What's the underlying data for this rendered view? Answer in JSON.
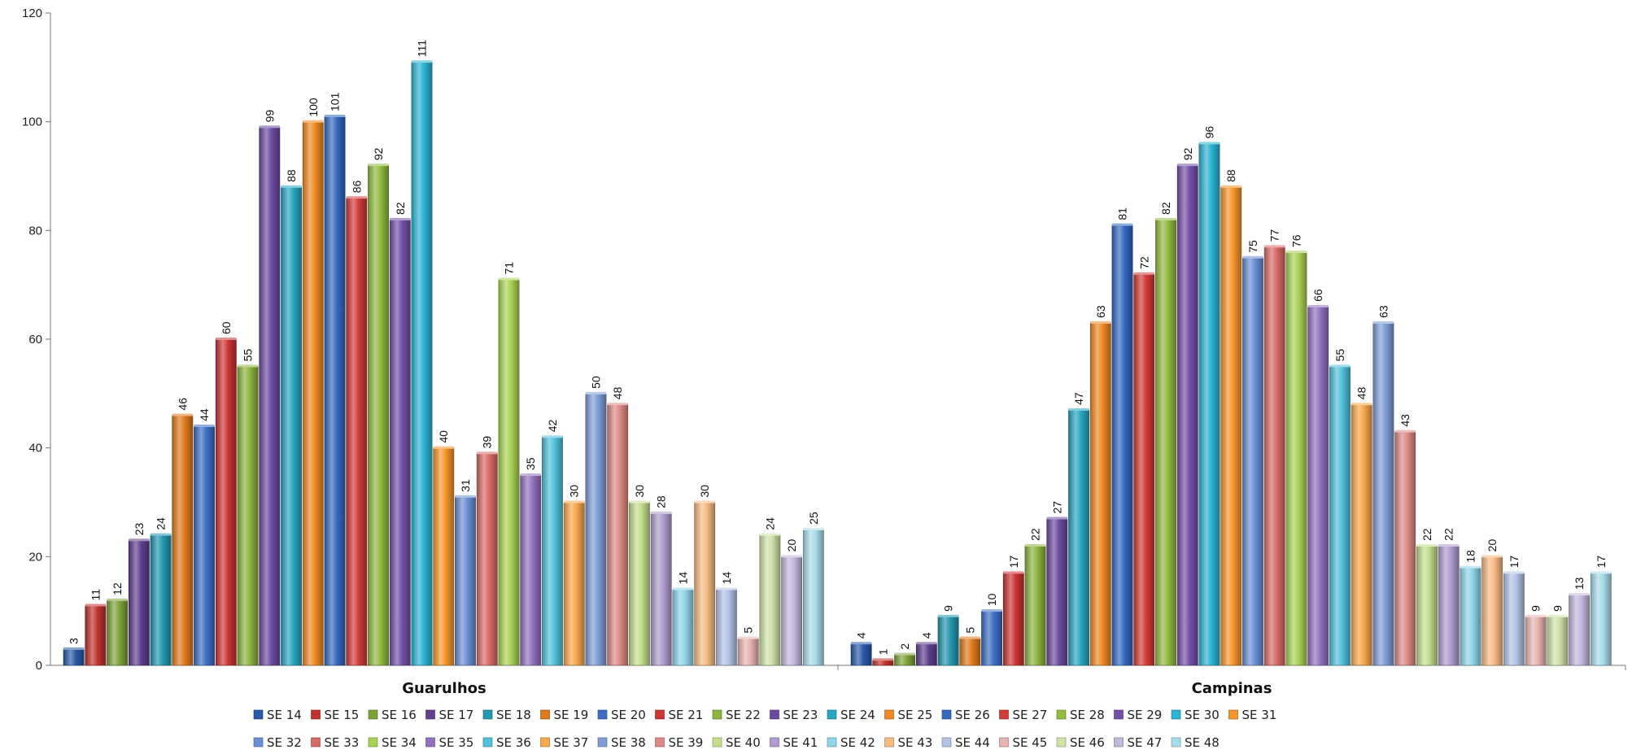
{
  "chart_data": {
    "type": "bar",
    "categories": [
      "Guarulhos",
      "Campinas"
    ],
    "ylim": [
      0,
      120
    ],
    "yticks": [
      0,
      20,
      40,
      60,
      80,
      100,
      120
    ],
    "grid": false,
    "legend_position": "bottom",
    "series": [
      {
        "name": "SE 14",
        "color": "#2a5aa8",
        "values": [
          3,
          4
        ]
      },
      {
        "name": "SE 15",
        "color": "#c0322e",
        "values": [
          11,
          1
        ]
      },
      {
        "name": "SE 16",
        "color": "#7ea23a",
        "values": [
          12,
          2
        ]
      },
      {
        "name": "SE 17",
        "color": "#5f3f8f",
        "values": [
          23,
          4
        ]
      },
      {
        "name": "SE 18",
        "color": "#2598b0",
        "values": [
          24,
          9
        ]
      },
      {
        "name": "SE 19",
        "color": "#e07a1c",
        "values": [
          46,
          5
        ]
      },
      {
        "name": "SE 20",
        "color": "#3c6fc4",
        "values": [
          44,
          10
        ]
      },
      {
        "name": "SE 21",
        "color": "#cc3533",
        "values": [
          60,
          17
        ]
      },
      {
        "name": "SE 22",
        "color": "#8cb43e",
        "values": [
          55,
          22
        ]
      },
      {
        "name": "SE 23",
        "color": "#6b4aa0",
        "values": [
          99,
          27
        ]
      },
      {
        "name": "SE 24",
        "color": "#29a7c2",
        "values": [
          88,
          47
        ]
      },
      {
        "name": "SE 25",
        "color": "#f08a22",
        "values": [
          100,
          63
        ]
      },
      {
        "name": "SE 26",
        "color": "#3469c0",
        "values": [
          101,
          81
        ]
      },
      {
        "name": "SE 27",
        "color": "#d23b38",
        "values": [
          86,
          72
        ]
      },
      {
        "name": "SE 28",
        "color": "#92bc40",
        "values": [
          92,
          82
        ]
      },
      {
        "name": "SE 29",
        "color": "#7450a8",
        "values": [
          82,
          92
        ]
      },
      {
        "name": "SE 30",
        "color": "#2cb4d2",
        "values": [
          111,
          96
        ]
      },
      {
        "name": "SE 31",
        "color": "#f5962c",
        "values": [
          40,
          88
        ]
      },
      {
        "name": "SE 32",
        "color": "#6b8fd4",
        "values": [
          31,
          75
        ]
      },
      {
        "name": "SE 33",
        "color": "#d86a66",
        "values": [
          39,
          77
        ]
      },
      {
        "name": "SE 34",
        "color": "#aad255",
        "values": [
          71,
          76
        ]
      },
      {
        "name": "SE 35",
        "color": "#9272c0",
        "values": [
          35,
          66
        ]
      },
      {
        "name": "SE 36",
        "color": "#52c2dc",
        "values": [
          42,
          55
        ]
      },
      {
        "name": "SE 37",
        "color": "#f8a84c",
        "values": [
          30,
          48
        ]
      },
      {
        "name": "SE 38",
        "color": "#7f9ed6",
        "values": [
          50,
          63
        ]
      },
      {
        "name": "SE 39",
        "color": "#dd8a86",
        "values": [
          48,
          43
        ]
      },
      {
        "name": "SE 40",
        "color": "#c4de8e",
        "values": [
          30,
          22
        ]
      },
      {
        "name": "SE 41",
        "color": "#b09ccf",
        "values": [
          28,
          22
        ]
      },
      {
        "name": "SE 42",
        "color": "#8fd6e8",
        "values": [
          14,
          18
        ]
      },
      {
        "name": "SE 43",
        "color": "#f7bc84",
        "values": [
          30,
          20
        ]
      },
      {
        "name": "SE 44",
        "color": "#b4c4e6",
        "values": [
          14,
          17
        ]
      },
      {
        "name": "SE 45",
        "color": "#e8b4b2",
        "values": [
          5,
          9
        ]
      },
      {
        "name": "SE 46",
        "color": "#cfe2a8",
        "values": [
          24,
          9
        ]
      },
      {
        "name": "SE 47",
        "color": "#c4b8dc",
        "values": [
          20,
          13
        ]
      },
      {
        "name": "SE 48",
        "color": "#a8dcea",
        "values": [
          25,
          17
        ]
      }
    ]
  }
}
